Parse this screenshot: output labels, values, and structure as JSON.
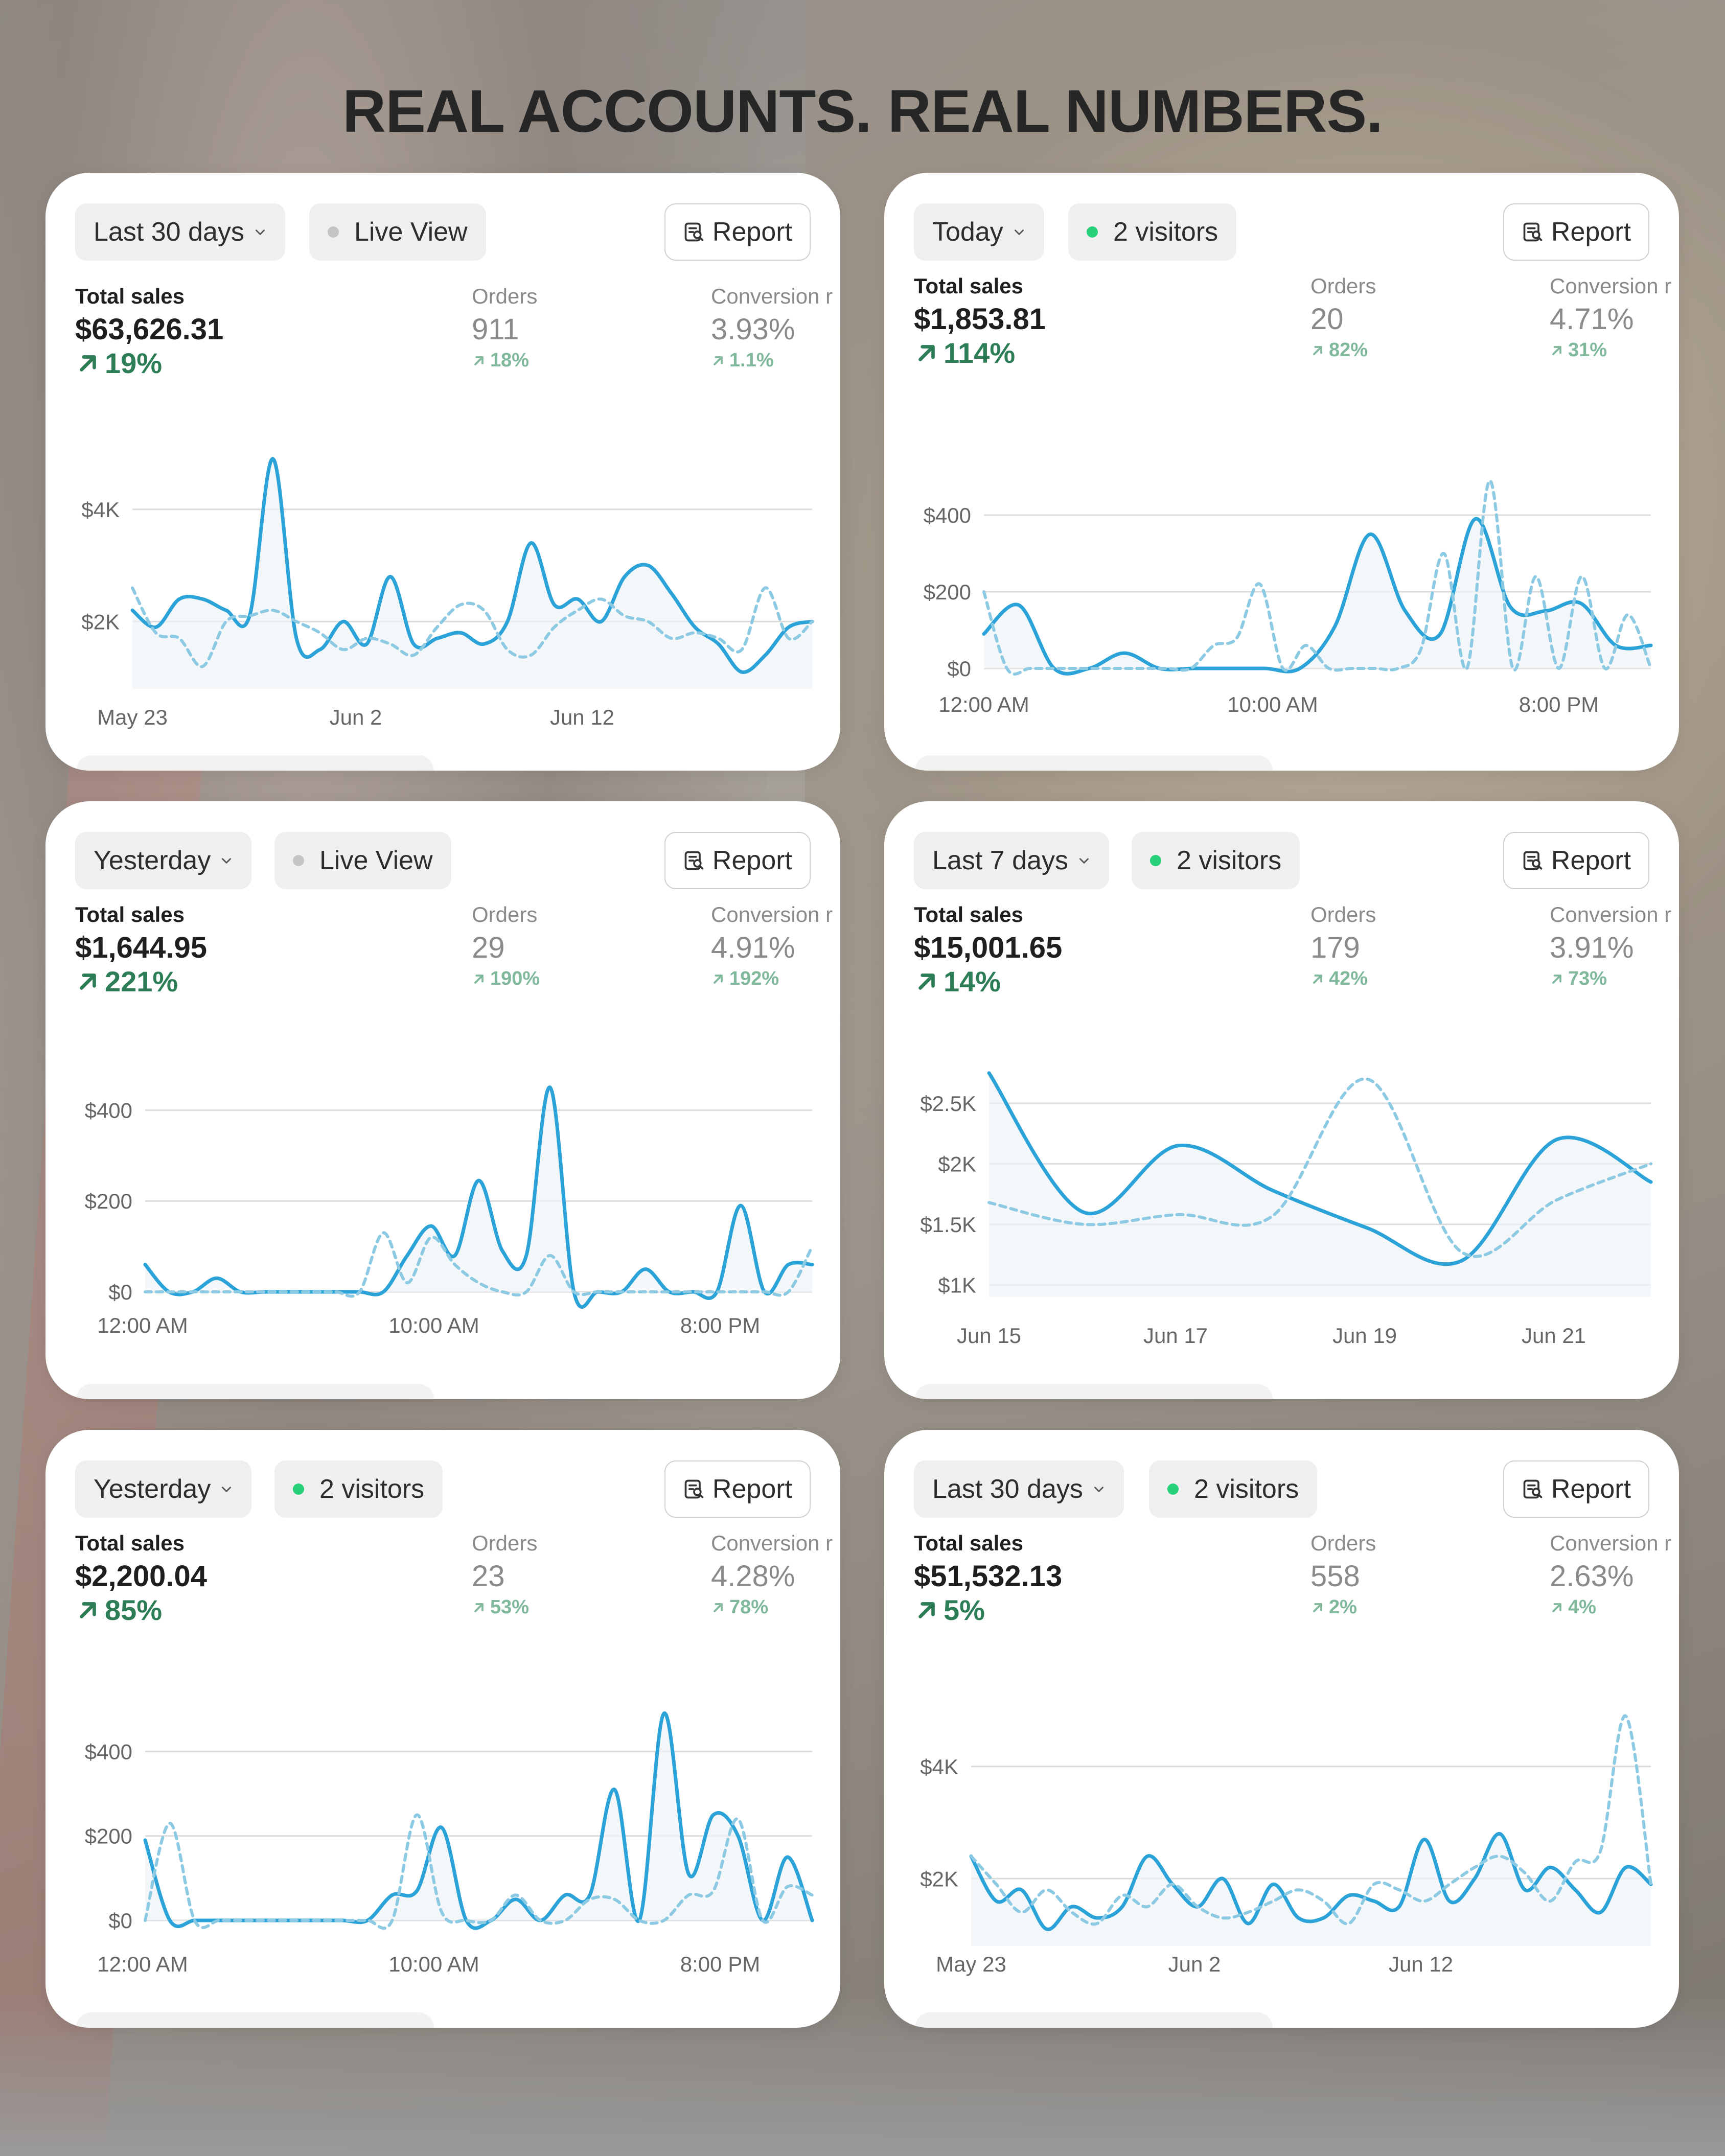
{
  "headline": "REAL ACCOUNTS. REAL NUMBERS.",
  "colors": {
    "accent": "#2ba3d8",
    "comparison": "#8cc9e3",
    "positive": "#2d7d57",
    "positive_muted": "#7fb89a",
    "live_dot_gray": "#c4c4c4",
    "live_dot_green": "#27d17a"
  },
  "icons": {
    "chevron": "chevron-down-icon",
    "report": "report-icon",
    "delta": "arrow-up-right-icon"
  },
  "cards": [
    {
      "range": "Last 30 days",
      "live": "Live View",
      "live_dot": "gray",
      "report": "Report",
      "total_label": "Total sales",
      "total": "$63,626.31",
      "total_delta": "19%",
      "orders_label": "Orders",
      "orders": "911",
      "orders_delta": "18%",
      "conv_label": "Conversion r",
      "conv": "3.93%",
      "conv_delta": "1.1%"
    },
    {
      "range": "Today",
      "live": "2 visitors",
      "live_dot": "green",
      "report": "Report",
      "total_label": "Total sales",
      "total": "$1,853.81",
      "total_delta": "114%",
      "orders_label": "Orders",
      "orders": "20",
      "orders_delta": "82%",
      "conv_label": "Conversion r",
      "conv": "4.71%",
      "conv_delta": "31%"
    },
    {
      "range": "Yesterday",
      "live": "Live View",
      "live_dot": "gray",
      "report": "Report",
      "total_label": "Total sales",
      "total": "$1,644.95",
      "total_delta": "221%",
      "orders_label": "Orders",
      "orders": "29",
      "orders_delta": "190%",
      "conv_label": "Conversion r",
      "conv": "4.91%",
      "conv_delta": "192%"
    },
    {
      "range": "Last 7 days",
      "live": "2 visitors",
      "live_dot": "green",
      "report": "Report",
      "total_label": "Total sales",
      "total": "$15,001.65",
      "total_delta": "14%",
      "orders_label": "Orders",
      "orders": "179",
      "orders_delta": "42%",
      "conv_label": "Conversion r",
      "conv": "3.91%",
      "conv_delta": "73%"
    },
    {
      "range": "Yesterday",
      "live": "2 visitors",
      "live_dot": "green",
      "report": "Report",
      "total_label": "Total sales",
      "total": "$2,200.04",
      "total_delta": "85%",
      "orders_label": "Orders",
      "orders": "23",
      "orders_delta": "53%",
      "conv_label": "Conversion r",
      "conv": "4.28%",
      "conv_delta": "78%"
    },
    {
      "range": "Last 30 days",
      "live": "2 visitors",
      "live_dot": "green",
      "report": "Report",
      "total_label": "Total sales",
      "total": "$51,532.13",
      "total_delta": "5%",
      "orders_label": "Orders",
      "orders": "558",
      "orders_delta": "2%",
      "conv_label": "Conversion r",
      "conv": "2.63%",
      "conv_delta": "4%"
    }
  ],
  "chart_data": [
    {
      "type": "line",
      "x_ticks": [
        "May 23",
        "Jun 2",
        "Jun 12"
      ],
      "y_ticks": [
        "$2K",
        "$4K"
      ],
      "ylim": [
        800,
        4900
      ],
      "series": [
        {
          "style": "solid",
          "values": [
            2200,
            1900,
            2400,
            2400,
            2200,
            2100,
            4900,
            1700,
            1500,
            2000,
            1600,
            2800,
            1600,
            1700,
            1800,
            1600,
            2000,
            3400,
            2300,
            2400,
            2000,
            2800,
            3000,
            2500,
            1900,
            1600,
            1100,
            1400,
            1900,
            2000
          ]
        },
        {
          "style": "dashed",
          "values": [
            2600,
            1800,
            1700,
            1200,
            2000,
            2100,
            2200,
            2000,
            1800,
            1500,
            1700,
            1600,
            1400,
            1900,
            2300,
            2200,
            1500,
            1400,
            1900,
            2200,
            2400,
            2100,
            2000,
            1700,
            1800,
            1700,
            1500,
            2600,
            1700,
            2000
          ]
        }
      ]
    },
    {
      "type": "line",
      "x_ticks": [
        "12:00 AM",
        "10:00 AM",
        "8:00 PM"
      ],
      "y_ticks": [
        "$0",
        "$200",
        "$400"
      ],
      "ylim": [
        0,
        520
      ],
      "series": [
        {
          "style": "solid",
          "values": [
            90,
            165,
            0,
            0,
            40,
            0,
            0,
            0,
            0,
            0,
            110,
            350,
            150,
            90,
            390,
            160,
            150,
            170,
            60,
            60
          ]
        },
        {
          "style": "dashed",
          "values": [
            200,
            0,
            0,
            0,
            0,
            0,
            0,
            0,
            0,
            0,
            60,
            80,
            220,
            0,
            60,
            0,
            0,
            0,
            0,
            50,
            300,
            0,
            490,
            0,
            240,
            0,
            240,
            0,
            140,
            0
          ]
        }
      ]
    },
    {
      "type": "line",
      "x_ticks": [
        "12:00 AM",
        "10:00 AM",
        "8:00 PM"
      ],
      "y_ticks": [
        "$0",
        "$200",
        "$400"
      ],
      "ylim": [
        0,
        450
      ],
      "series": [
        {
          "style": "solid",
          "values": [
            60,
            0,
            0,
            30,
            0,
            0,
            0,
            0,
            0,
            0,
            0,
            80,
            145,
            80,
            245,
            90,
            80,
            450,
            0,
            0,
            0,
            50,
            0,
            0,
            0,
            190,
            0,
            60,
            60
          ]
        },
        {
          "style": "dashed",
          "values": [
            0,
            0,
            0,
            0,
            0,
            0,
            0,
            0,
            0,
            0,
            130,
            20,
            120,
            60,
            20,
            0,
            0,
            80,
            0,
            0,
            0,
            0,
            0,
            0,
            0,
            0,
            0,
            0,
            100
          ]
        }
      ]
    },
    {
      "type": "line",
      "x_ticks": [
        "Jun 15",
        "Jun 17",
        "Jun 19",
        "Jun 21"
      ],
      "y_ticks": [
        "$1K",
        "$1.5K",
        "$2K",
        "$2.5K"
      ],
      "ylim": [
        900,
        2800
      ],
      "series": [
        {
          "style": "solid",
          "values": [
            2750,
            1600,
            2150,
            1780,
            1470,
            1200,
            2200,
            1850
          ]
        },
        {
          "style": "dashed",
          "values": [
            1680,
            1500,
            1580,
            1570,
            2700,
            1270,
            1700,
            2000
          ]
        }
      ]
    },
    {
      "type": "line",
      "x_ticks": [
        "12:00 AM",
        "10:00 AM",
        "8:00 PM"
      ],
      "y_ticks": [
        "$0",
        "$200",
        "$400"
      ],
      "ylim": [
        0,
        490
      ],
      "series": [
        {
          "style": "solid",
          "values": [
            190,
            0,
            0,
            0,
            0,
            0,
            0,
            0,
            0,
            0,
            60,
            70,
            220,
            0,
            0,
            50,
            0,
            60,
            60,
            310,
            0,
            490,
            110,
            250,
            200,
            0,
            150,
            0
          ]
        },
        {
          "style": "dashed",
          "values": [
            0,
            230,
            0,
            0,
            0,
            0,
            0,
            0,
            0,
            0,
            0,
            250,
            20,
            0,
            0,
            60,
            0,
            0,
            50,
            50,
            0,
            0,
            60,
            70,
            240,
            0,
            80,
            60
          ]
        }
      ]
    },
    {
      "type": "line",
      "x_ticks": [
        "May 23",
        "Jun 2",
        "Jun 12"
      ],
      "y_ticks": [
        "$2K",
        "$4K"
      ],
      "ylim": [
        800,
        4900
      ],
      "series": [
        {
          "style": "solid",
          "values": [
            2400,
            1600,
            1800,
            1100,
            1500,
            1300,
            1500,
            2400,
            1900,
            1500,
            2000,
            1200,
            1900,
            1300,
            1300,
            1700,
            1600,
            1500,
            2700,
            1600,
            2000,
            2800,
            1800,
            2200,
            1800,
            1400,
            2200,
            1900
          ]
        },
        {
          "style": "dashed",
          "values": [
            2400,
            1900,
            1400,
            1800,
            1400,
            1200,
            1700,
            1500,
            1900,
            1500,
            1300,
            1400,
            1600,
            1800,
            1600,
            1200,
            1900,
            1800,
            1600,
            1900,
            2200,
            2400,
            2100,
            1600,
            2300,
            2500,
            4900,
            1900
          ]
        }
      ]
    }
  ]
}
